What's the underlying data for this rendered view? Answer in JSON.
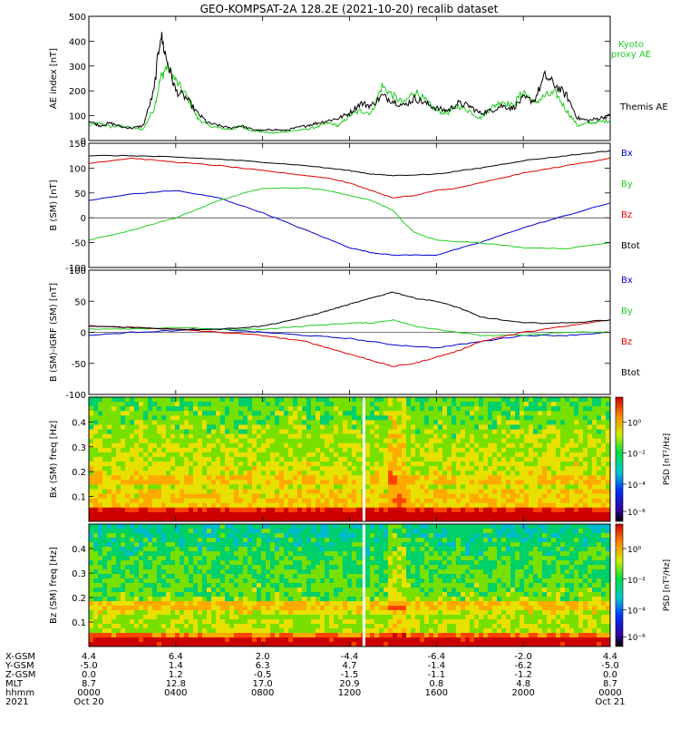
{
  "title": "GEO-KOMPSAT-2A 128.2E (2021-10-20) recalib dataset",
  "chart_data": [
    {
      "type": "line",
      "id": "ae",
      "ylabel": "AE index [nT]",
      "ylim": [
        0,
        500
      ],
      "yticks": [
        "0",
        "100",
        "200",
        "300",
        "400",
        "500"
      ],
      "series": [
        {
          "name": "Kyoto proxy AE",
          "label_lines": [
            "Kyoto",
            "proxy AE"
          ],
          "color": "#22cc22",
          "x": [
            0,
            0.5,
            1,
            1.5,
            2,
            2.5,
            3,
            3.3,
            3.6,
            4,
            4.5,
            5,
            5.5,
            6,
            6.5,
            7,
            7.5,
            8,
            8.5,
            9,
            9.5,
            10,
            10.5,
            11,
            11.5,
            12,
            12.5,
            13,
            13.5,
            14,
            14.5,
            15,
            15.5,
            16,
            16.5,
            17,
            17.5,
            18,
            18.5,
            19,
            19.5,
            20,
            20.5,
            21,
            21.5,
            22,
            22.5,
            23,
            23.5,
            24
          ],
          "values": [
            60,
            70,
            55,
            60,
            50,
            45,
            130,
            250,
            300,
            240,
            180,
            90,
            60,
            50,
            45,
            55,
            40,
            35,
            30,
            35,
            40,
            45,
            55,
            70,
            60,
            100,
            120,
            110,
            220,
            180,
            150,
            200,
            160,
            120,
            110,
            140,
            120,
            90,
            130,
            160,
            140,
            200,
            150,
            180,
            190,
            120,
            60,
            70,
            75,
            80
          ]
        },
        {
          "name": "Themis AE",
          "label_lines": [
            "Themis AE"
          ],
          "color": "#000000",
          "x": [
            0,
            0.5,
            1,
            1.5,
            2,
            2.5,
            3,
            3.3,
            3.6,
            4,
            4.5,
            5,
            5.5,
            6,
            6.5,
            7,
            7.5,
            8,
            8.5,
            9,
            9.5,
            10,
            10.5,
            11,
            11.5,
            12,
            12.5,
            13,
            13.5,
            14,
            14.5,
            15,
            15.5,
            16,
            16.5,
            17,
            17.5,
            18,
            18.5,
            19,
            19.5,
            20,
            20.5,
            21,
            21.5,
            22,
            22.5,
            23,
            23.5,
            24
          ],
          "values": [
            80,
            60,
            70,
            55,
            50,
            60,
            200,
            430,
            320,
            200,
            170,
            110,
            70,
            60,
            50,
            60,
            45,
            40,
            45,
            40,
            50,
            60,
            70,
            80,
            90,
            110,
            150,
            140,
            180,
            160,
            140,
            170,
            150,
            130,
            120,
            150,
            140,
            110,
            120,
            140,
            130,
            170,
            160,
            260,
            220,
            180,
            90,
            80,
            90,
            100
          ]
        }
      ]
    },
    {
      "type": "line",
      "id": "bsm",
      "ylabel": "B (SM) [nT]",
      "ylim": [
        -100,
        150
      ],
      "yticks": [
        "-100",
        "-50",
        "0",
        "50",
        "100",
        "150"
      ],
      "series": [
        {
          "name": "Bx",
          "color": "#0000cc",
          "x": [
            0,
            2,
            4,
            6,
            8,
            10,
            12,
            13,
            14,
            16,
            18,
            20,
            22,
            24
          ],
          "values": [
            35,
            48,
            55,
            40,
            10,
            -25,
            -60,
            -70,
            -75,
            -75,
            -50,
            -20,
            5,
            30
          ]
        },
        {
          "name": "By",
          "color": "#22cc22",
          "x": [
            0,
            2,
            4,
            6,
            8,
            10,
            11,
            12,
            13,
            14,
            14.5,
            15,
            16,
            18,
            20,
            22,
            24
          ],
          "values": [
            -45,
            -25,
            0,
            35,
            60,
            60,
            55,
            45,
            35,
            15,
            -10,
            -30,
            -45,
            -50,
            -60,
            -62,
            -50
          ]
        },
        {
          "name": "Bz",
          "color": "#dd0000",
          "x": [
            0,
            2,
            4,
            6,
            8,
            10,
            11,
            12,
            13,
            14,
            15,
            16,
            17,
            18,
            20,
            22,
            24
          ],
          "values": [
            110,
            120,
            112,
            105,
            95,
            85,
            80,
            70,
            55,
            40,
            45,
            55,
            60,
            70,
            90,
            105,
            120
          ]
        },
        {
          "name": "Btot",
          "color": "#000000",
          "x": [
            0,
            2,
            4,
            6,
            8,
            10,
            12,
            13,
            14,
            16,
            18,
            20,
            22,
            24
          ],
          "values": [
            125,
            125,
            122,
            118,
            112,
            105,
            95,
            88,
            85,
            88,
            100,
            115,
            125,
            135
          ]
        }
      ]
    },
    {
      "type": "line",
      "id": "bdiff",
      "ylabel": "B (SM)-IGRF (SM) [nT]",
      "ylim": [
        -100,
        100
      ],
      "yticks": [
        "-100",
        "-50",
        "0",
        "50",
        "100"
      ],
      "series": [
        {
          "name": "Bx",
          "color": "#0000cc",
          "x": [
            0,
            2,
            4,
            6,
            8,
            10,
            12,
            14,
            16,
            18,
            20,
            22,
            24
          ],
          "values": [
            -5,
            0,
            3,
            5,
            0,
            -5,
            -10,
            -20,
            -25,
            -15,
            -5,
            -5,
            0
          ]
        },
        {
          "name": "By",
          "color": "#22cc22",
          "x": [
            0,
            2,
            4,
            6,
            8,
            10,
            12,
            13,
            14,
            15,
            16,
            18,
            20,
            22,
            24
          ],
          "values": [
            5,
            5,
            8,
            5,
            5,
            10,
            15,
            15,
            20,
            10,
            5,
            -5,
            -5,
            0,
            0
          ]
        },
        {
          "name": "Bz",
          "color": "#dd0000",
          "x": [
            0,
            2,
            4,
            6,
            8,
            10,
            11,
            12,
            13,
            14,
            15,
            16,
            17,
            18,
            20,
            22,
            24
          ],
          "values": [
            10,
            8,
            5,
            0,
            -5,
            -15,
            -25,
            -35,
            -45,
            -55,
            -50,
            -40,
            -30,
            -15,
            0,
            10,
            20
          ]
        },
        {
          "name": "Btot",
          "color": "#000000",
          "x": [
            0,
            2,
            4,
            6,
            8,
            10,
            11,
            12,
            13,
            14,
            15,
            16,
            17,
            18,
            20,
            22,
            24
          ],
          "values": [
            10,
            8,
            5,
            5,
            10,
            25,
            35,
            45,
            55,
            65,
            55,
            50,
            40,
            25,
            15,
            15,
            20
          ]
        }
      ]
    },
    {
      "type": "heatmap",
      "id": "bx_psd",
      "ylabel": "Bx (SM)  freq [Hz]",
      "ylim": [
        0,
        0.5
      ],
      "yticks": [
        "0.1",
        "0.2",
        "0.3",
        "0.4"
      ],
      "colorbar_label": "PSD [nT²/Hz]",
      "colorbar_ticks": [
        "10⁰",
        "10⁻²",
        "10⁻⁴",
        "10⁻⁶"
      ]
    },
    {
      "type": "heatmap",
      "id": "bz_psd",
      "ylabel": "Bz (SM)  freq [Hz]",
      "ylim": [
        0,
        0.5
      ],
      "yticks": [
        "0.1",
        "0.2",
        "0.3",
        "0.4"
      ],
      "colorbar_label": "PSD [nT²/Hz]",
      "colorbar_ticks": [
        "10⁰",
        "10⁻²",
        "10⁻⁴",
        "10⁻⁶"
      ]
    }
  ],
  "x_axis": {
    "xlim": [
      0,
      24
    ],
    "tick_hours": [
      0,
      4,
      8,
      12,
      16,
      20,
      24
    ],
    "rows": [
      {
        "label": "X-GSM",
        "values": [
          "4.4",
          "6.4",
          "2.0",
          "-4.4",
          "-6.4",
          "-2.0",
          "4.4"
        ]
      },
      {
        "label": "Y-GSM",
        "values": [
          "-5.0",
          "1.4",
          "6.3",
          "4.7",
          "-1.4",
          "-6.2",
          "-5.0"
        ]
      },
      {
        "label": "Z-GSM",
        "values": [
          "0.0",
          "1.2",
          "-0.5",
          "-1.5",
          "-1.1",
          "-1.2",
          "0.0"
        ]
      },
      {
        "label": "MLT",
        "values": [
          "8.7",
          "12.8",
          "17.0",
          "20.9",
          "0.8",
          "4.8",
          "8.7"
        ]
      },
      {
        "label": "hhmm",
        "values": [
          "0000",
          "0400",
          "0800",
          "1200",
          "1600",
          "2000",
          "0000"
        ]
      },
      {
        "label": "2021",
        "values": [
          "Oct 20",
          "",
          "",
          "",
          "",
          "",
          "Oct 21"
        ]
      }
    ]
  }
}
